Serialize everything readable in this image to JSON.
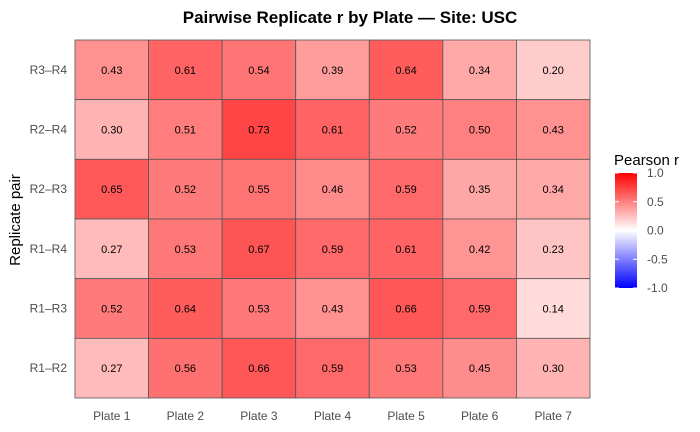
{
  "chart_data": {
    "type": "heatmap",
    "title": "Pairwise Replicate r by Plate — Site: USC",
    "xlabel": "",
    "ylabel": "Replicate pair",
    "x_categories": [
      "Plate 1",
      "Plate 2",
      "Plate 3",
      "Plate 4",
      "Plate 5",
      "Plate 6",
      "Plate 7"
    ],
    "y_categories": [
      "R3–R4",
      "R2–R4",
      "R2–R3",
      "R1–R4",
      "R1–R3",
      "R1–R2"
    ],
    "values": [
      [
        0.43,
        0.61,
        0.54,
        0.39,
        0.64,
        0.34,
        0.2
      ],
      [
        0.3,
        0.51,
        0.73,
        0.61,
        0.52,
        0.5,
        0.43
      ],
      [
        0.65,
        0.52,
        0.55,
        0.46,
        0.59,
        0.35,
        0.34
      ],
      [
        0.27,
        0.53,
        0.67,
        0.59,
        0.61,
        0.42,
        0.23
      ],
      [
        0.52,
        0.64,
        0.53,
        0.43,
        0.66,
        0.59,
        0.14
      ],
      [
        0.27,
        0.56,
        0.66,
        0.59,
        0.53,
        0.45,
        0.3
      ]
    ],
    "cell_labels": [
      [
        "0.43",
        "0.61",
        "0.54",
        "0.39",
        "0.64",
        "0.34",
        "0.20"
      ],
      [
        "0.30",
        "0.51",
        "0.73",
        "0.61",
        "0.52",
        "0.50",
        "0.43"
      ],
      [
        "0.65",
        "0.52",
        "0.55",
        "0.46",
        "0.59",
        "0.35",
        "0.34"
      ],
      [
        "0.27",
        "0.53",
        "0.67",
        "0.59",
        "0.61",
        "0.42",
        "0.23"
      ],
      [
        "0.52",
        "0.64",
        "0.53",
        "0.43",
        "0.66",
        "0.59",
        "0.14"
      ],
      [
        "0.27",
        "0.56",
        "0.66",
        "0.59",
        "0.53",
        "0.45",
        "0.30"
      ]
    ],
    "legend": {
      "title": "Pearson r",
      "placement": "right",
      "range": [
        -1.0,
        1.0
      ],
      "ticks": [
        "1.0",
        "0.5",
        "0.0",
        "-0.5",
        "-1.0"
      ],
      "tick_values": [
        1.0,
        0.5,
        0.0,
        -0.5,
        -1.0
      ]
    },
    "colors": {
      "low": "#0000ff",
      "mid": "#ffffff",
      "high": "#ff0000",
      "cell_border": "#555555"
    },
    "grid": false
  }
}
